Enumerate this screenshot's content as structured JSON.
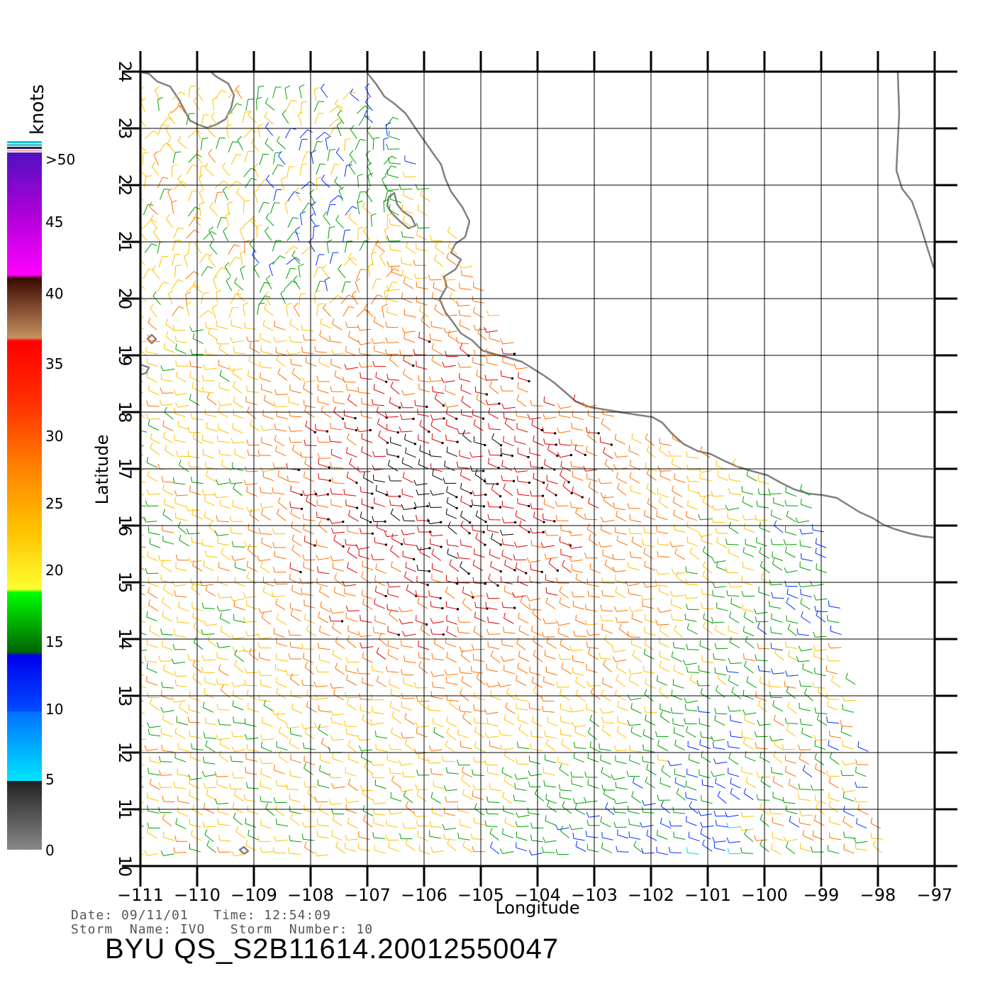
{
  "map": {
    "lon_ticks": [
      "−111",
      "−110",
      "−109",
      "−108",
      "−107",
      "−106",
      "−105",
      "−104",
      "−103",
      "−102",
      "−101",
      "−100",
      "−99",
      "−98",
      "−97"
    ],
    "lat_ticks": [
      "10",
      "11",
      "12",
      "13",
      "14",
      "15",
      "16",
      "17",
      "18",
      "19",
      "20",
      "21",
      "22",
      "23",
      "24"
    ],
    "lon_range": [
      -111,
      -97
    ],
    "lat_range": [
      10,
      24
    ],
    "xlabel": "Longitude",
    "ylabel": "Latitude",
    "grid": true,
    "land_outline_color": "#808080"
  },
  "legend": {
    "title": "knots",
    "labels": [
      ">50",
      "45",
      "40",
      "35",
      "30",
      "25",
      "20",
      "15",
      "10",
      "5",
      "0"
    ],
    "colors": {
      "0-5": [
        "#888888",
        "#222222"
      ],
      "5-10": [
        "#00e5ff",
        "#0070ff"
      ],
      "10-15": [
        "#0050ff",
        "#0000ee"
      ],
      "15-20": [
        "#006400",
        "#00ff00"
      ],
      "20-25": [
        "#ffff30",
        "#ffc000"
      ],
      "25-30": [
        "#ff9000",
        "#ff3a00"
      ],
      "30-35": [
        "#ff3000",
        "#ff0000"
      ],
      "35-40": [
        "#c89060",
        "#3a0800"
      ],
      "40-45": [
        "#ff00ff",
        "#c000d0"
      ],
      "45-50": [
        "#b000d8",
        "#5010c0"
      ]
    }
  },
  "info": {
    "date_line": "Date: 09/11/01   Time: 12:54:09",
    "storm_line": "Storm  Name: IVO   Storm  Number: 10",
    "title": "BYU  QS_S2B11614.20012550047"
  }
}
